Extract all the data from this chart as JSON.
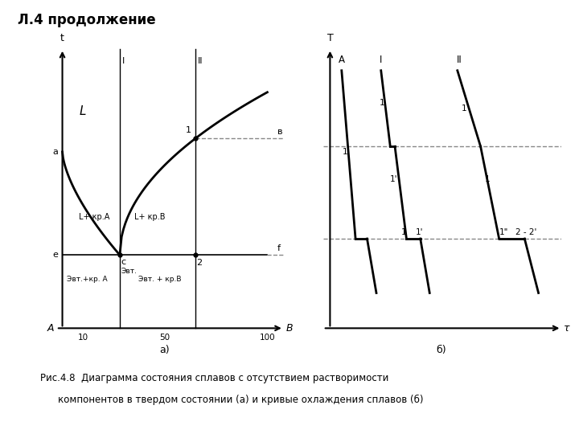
{
  "title": "Л.4 продолжение",
  "caption_line1": "Рис.4.8  Диаграмма состояния сплавов с отсутствием растворимости",
  "caption_line2": "компонентов в твердом состоянии (а) и кривые охлаждения сплавов (б)",
  "sublabel_a": "а)",
  "sublabel_b": "б)",
  "bg_color": "#ffffff",
  "line_color": "#000000",
  "dashed_color": "#888888"
}
